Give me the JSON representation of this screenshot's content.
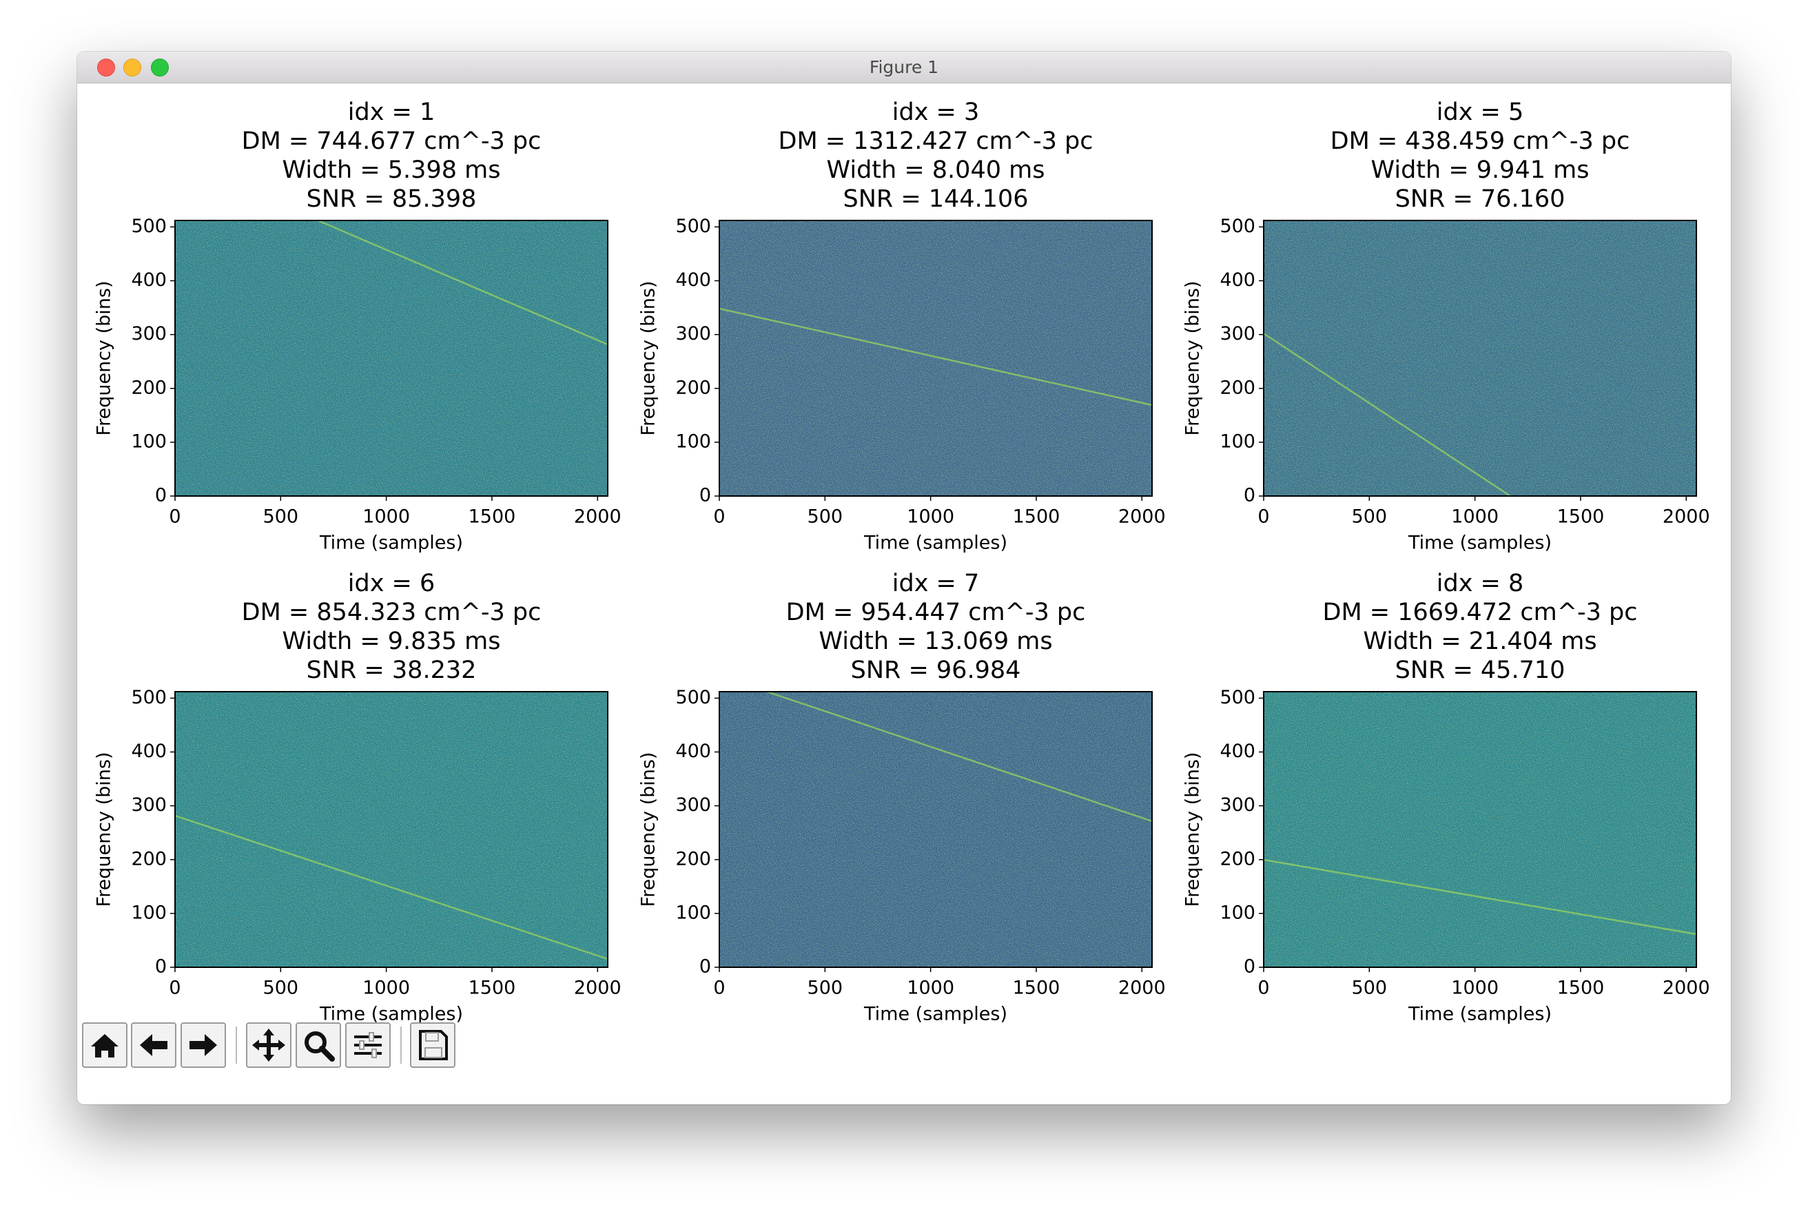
{
  "window": {
    "title": "Figure 1"
  },
  "chart_data": [
    {
      "type": "heatmap",
      "title": [
        "idx = 1",
        "DM = 744.677 cm^-3 pc",
        "Width = 5.398 ms",
        "SNR = 85.398"
      ],
      "xlabel": "Time (samples)",
      "ylabel": "Frequency (bins)",
      "xlim": [
        0,
        2048
      ],
      "ylim": [
        0,
        512
      ],
      "xticks": [
        0,
        500,
        1000,
        1500,
        2000
      ],
      "yticks": [
        0,
        100,
        200,
        300,
        400,
        500
      ],
      "color": "#26828e"
    },
    {
      "type": "heatmap",
      "title": [
        "idx = 3",
        "DM = 1312.427 cm^-3 pc",
        "Width = 8.040 ms",
        "SNR = 144.106"
      ],
      "xlabel": "Time (samples)",
      "ylabel": "Frequency (bins)",
      "xlim": [
        0,
        2048
      ],
      "ylim": [
        0,
        512
      ],
      "xticks": [
        0,
        500,
        1000,
        1500,
        2000
      ],
      "yticks": [
        0,
        100,
        200,
        300,
        400,
        500
      ],
      "color": "#3a6a8d"
    },
    {
      "type": "heatmap",
      "title": [
        "idx = 5",
        "DM = 438.459 cm^-3 pc",
        "Width = 9.941 ms",
        "SNR = 76.160"
      ],
      "xlabel": "Time (samples)",
      "ylabel": "Frequency (bins)",
      "xlim": [
        0,
        2048
      ],
      "ylim": [
        0,
        512
      ],
      "xticks": [
        0,
        500,
        1000,
        1500,
        2000
      ],
      "yticks": [
        0,
        100,
        200,
        300,
        400,
        500
      ],
      "color": "#33738d"
    },
    {
      "type": "heatmap",
      "title": [
        "idx = 6",
        "DM = 854.323 cm^-3 pc",
        "Width = 9.835 ms",
        "SNR = 38.232"
      ],
      "xlabel": "Time (samples)",
      "ylabel": "Frequency (bins)",
      "xlim": [
        0,
        2048
      ],
      "ylim": [
        0,
        512
      ],
      "xticks": [
        0,
        500,
        1000,
        1500,
        2000
      ],
      "yticks": [
        0,
        100,
        200,
        300,
        400,
        500
      ],
      "color": "#24878d"
    },
    {
      "type": "heatmap",
      "title": [
        "idx = 7",
        "DM = 954.447 cm^-3 pc",
        "Width = 13.069 ms",
        "SNR = 96.984"
      ],
      "xlabel": "Time (samples)",
      "ylabel": "Frequency (bins)",
      "xlim": [
        0,
        2048
      ],
      "ylim": [
        0,
        512
      ],
      "xticks": [
        0,
        500,
        1000,
        1500,
        2000
      ],
      "yticks": [
        0,
        100,
        200,
        300,
        400,
        500
      ],
      "color": "#35688c"
    },
    {
      "type": "heatmap",
      "title": [
        "idx = 8",
        "DM = 1669.472 cm^-3 pc",
        "Width = 21.404 ms",
        "SNR = 45.710"
      ],
      "xlabel": "Time (samples)",
      "ylabel": "Frequency (bins)",
      "xlim": [
        0,
        2048
      ],
      "ylim": [
        0,
        512
      ],
      "xticks": [
        0,
        500,
        1000,
        1500,
        2000
      ],
      "yticks": [
        0,
        100,
        200,
        300,
        400,
        500
      ],
      "color": "#25898c"
    }
  ]
}
